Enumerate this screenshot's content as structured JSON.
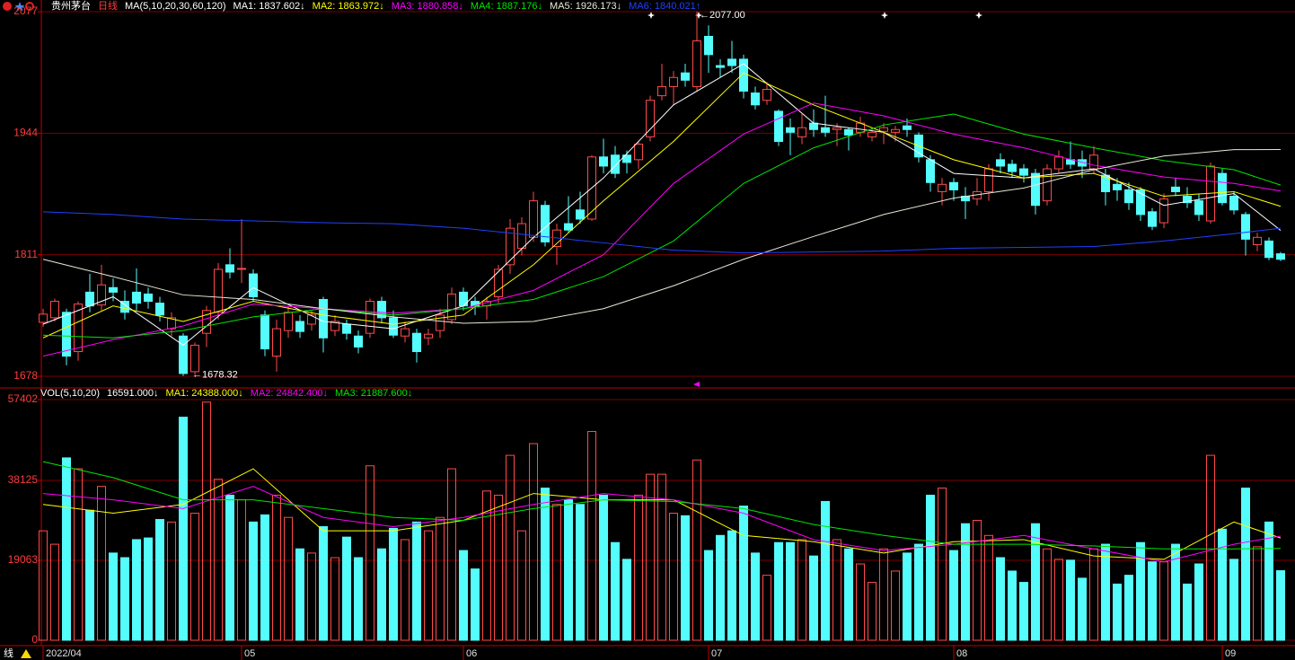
{
  "chart_data": [
    {
      "type": "candlestick",
      "title": "贵州茅台",
      "subtitle": "日线",
      "indicator": "MA(5,10,20,30,60,120)",
      "high_label": "←2077.00",
      "low_label": "←1678.32",
      "ylim": [
        1678,
        2077
      ],
      "yticks": [
        1678,
        1811,
        1944,
        2077
      ],
      "grid": true,
      "up_color": "#ff4a4a",
      "down_color": "#54fcfc",
      "open": [
        1737,
        1742,
        1748,
        1705,
        1770,
        1756,
        1775,
        1760,
        1770,
        1768,
        1758,
        1730,
        1722,
        1683,
        1725,
        1748,
        1800,
        1795,
        1790,
        1745,
        1700,
        1728,
        1738,
        1735,
        1762,
        1728,
        1735,
        1722,
        1725,
        1760,
        1742,
        1722,
        1725,
        1720,
        1728,
        1740,
        1770,
        1760,
        1755,
        1765,
        1800,
        1818,
        1830,
        1865,
        1820,
        1845,
        1860,
        1850,
        1918,
        1920,
        1920,
        1915,
        1940,
        1985,
        1995,
        2010,
        1995,
        2050,
        2018,
        2025,
        2025,
        1988,
        1980,
        1968,
        1950,
        1940,
        1955,
        1950,
        1948,
        1948,
        1945,
        1940,
        1946,
        1945,
        1952,
        1942,
        1915,
        1880,
        1890,
        1875,
        1872,
        1880,
        1915,
        1910,
        1905,
        1900,
        1870,
        1905,
        1915,
        1915,
        1905,
        1898,
        1888,
        1882,
        1882,
        1858,
        1846,
        1885,
        1875,
        1870,
        1848,
        1900,
        1875,
        1855,
        1822,
        1826,
        1812
      ],
      "high": [
        1752,
        1763,
        1752,
        1760,
        1790,
        1800,
        1785,
        1772,
        1796,
        1775,
        1765,
        1748,
        1725,
        1715,
        1755,
        1802,
        1818,
        1850,
        1795,
        1750,
        1740,
        1755,
        1745,
        1750,
        1765,
        1745,
        1740,
        1728,
        1763,
        1765,
        1750,
        1738,
        1730,
        1730,
        1752,
        1775,
        1775,
        1765,
        1765,
        1800,
        1850,
        1852,
        1880,
        1870,
        1845,
        1875,
        1880,
        1920,
        1938,
        1930,
        1925,
        1935,
        1985,
        2020,
        2012,
        2020,
        2077,
        2062,
        2025,
        2045,
        2030,
        1995,
        2000,
        1970,
        1960,
        1965,
        1970,
        1985,
        1955,
        1950,
        1962,
        1950,
        1955,
        1952,
        1960,
        1945,
        1920,
        1895,
        1895,
        1885,
        1895,
        1910,
        1922,
        1915,
        1910,
        1905,
        1910,
        1925,
        1935,
        1925,
        1930,
        1905,
        1895,
        1890,
        1885,
        1862,
        1878,
        1895,
        1885,
        1878,
        1912,
        1905,
        1880,
        1858,
        1835,
        1830,
        1814
      ],
      "low": [
        1732,
        1738,
        1690,
        1695,
        1748,
        1750,
        1760,
        1740,
        1750,
        1752,
        1738,
        1722,
        1678.32,
        1680,
        1710,
        1740,
        1785,
        1780,
        1760,
        1700,
        1683,
        1720,
        1720,
        1728,
        1704,
        1722,
        1718,
        1703,
        1720,
        1736,
        1720,
        1715,
        1693,
        1712,
        1720,
        1735,
        1750,
        1745,
        1740,
        1758,
        1790,
        1810,
        1825,
        1820,
        1800,
        1835,
        1845,
        1848,
        1900,
        1895,
        1900,
        1905,
        1935,
        1980,
        1975,
        1995,
        1990,
        2010,
        2005,
        2010,
        1982,
        1970,
        1975,
        1930,
        1920,
        1932,
        1940,
        1940,
        1930,
        1925,
        1940,
        1935,
        1932,
        1935,
        1940,
        1912,
        1880,
        1865,
        1870,
        1850,
        1865,
        1870,
        1900,
        1895,
        1890,
        1855,
        1865,
        1900,
        1905,
        1895,
        1900,
        1865,
        1870,
        1860,
        1848,
        1838,
        1840,
        1875,
        1862,
        1848,
        1845,
        1865,
        1855,
        1810,
        1815,
        1805,
        1804
      ],
      "close": [
        1746,
        1760,
        1700,
        1757,
        1755,
        1778,
        1770,
        1748,
        1758,
        1760,
        1745,
        1742,
        1681,
        1712,
        1750,
        1795,
        1792,
        1796,
        1765,
        1708,
        1730,
        1748,
        1727,
        1745,
        1720,
        1738,
        1725,
        1710,
        1760,
        1742,
        1723,
        1730,
        1705,
        1724,
        1745,
        1768,
        1755,
        1755,
        1760,
        1795,
        1840,
        1845,
        1870,
        1825,
        1838,
        1838,
        1850,
        1918,
        1908,
        1900,
        1912,
        1932,
        1980,
        1995,
        2005,
        2002,
        2045,
        2030,
        2016,
        2018,
        1990,
        1975,
        1992,
        1935,
        1945,
        1950,
        1948,
        1945,
        1950,
        1942,
        1955,
        1945,
        1950,
        1948,
        1948,
        1918,
        1890,
        1888,
        1882,
        1870,
        1880,
        1905,
        1908,
        1902,
        1898,
        1865,
        1905,
        1918,
        1910,
        1908,
        1920,
        1880,
        1882,
        1868,
        1855,
        1842,
        1872,
        1880,
        1868,
        1855,
        1908,
        1868,
        1860,
        1828,
        1830,
        1808,
        1806
      ],
      "ma_x": [
        0,
        6,
        12,
        18,
        24,
        30,
        36,
        42,
        48,
        54,
        60,
        66,
        72,
        78,
        84,
        90,
        96,
        102,
        106
      ],
      "series": [
        {
          "name": "MA1: 1837.602↓",
          "color": "#ffffff",
          "values": [
            1735,
            1765,
            1712,
            1775,
            1738,
            1730,
            1755,
            1830,
            1895,
            1975,
            2020,
            1955,
            1945,
            1900,
            1895,
            1905,
            1865,
            1878,
            1837.602
          ]
        },
        {
          "name": "MA2: 1863.972↓",
          "color": "#ffff00",
          "values": [
            1720,
            1755,
            1738,
            1760,
            1745,
            1735,
            1745,
            1800,
            1870,
            1935,
            2010,
            1975,
            1945,
            1915,
            1895,
            1900,
            1875,
            1880,
            1863.972
          ]
        },
        {
          "name": "MA3: 1880.858↓",
          "color": "#ff00ff",
          "values": [
            1700,
            1718,
            1733,
            1757,
            1752,
            1747,
            1752,
            1772,
            1811,
            1889,
            1943,
            1977,
            1963,
            1943,
            1928,
            1909,
            1896,
            1889,
            1880.858
          ]
        },
        {
          "name": "MA4: 1887.176↓",
          "color": "#00e600",
          "values": [
            1723,
            1720,
            1728,
            1743,
            1752,
            1745,
            1752,
            1762,
            1787,
            1826,
            1889,
            1928,
            1953,
            1965,
            1943,
            1928,
            1914,
            1904,
            1887.176
          ]
        },
        {
          "name": "MA5: 1926.173↓",
          "color": "#e8e8d8",
          "values": [
            1806,
            1787,
            1767,
            1762,
            1752,
            1743,
            1736,
            1738,
            1752,
            1777,
            1806,
            1831,
            1855,
            1873,
            1884,
            1904,
            1919,
            1926,
            1926.173
          ]
        },
        {
          "name": "MA6: 1840.021↑",
          "color": "#2040ff",
          "values": [
            1858,
            1855,
            1850,
            1848,
            1846,
            1845,
            1840,
            1832,
            1824,
            1816,
            1813,
            1814,
            1815,
            1818,
            1819,
            1820,
            1826,
            1834,
            1840.021
          ]
        }
      ]
    },
    {
      "type": "volume",
      "title": "VOL(5,10,20)",
      "current_label": "16591.000↓",
      "footer_label": "线",
      "ylim": [
        0,
        57402
      ],
      "yticks": [
        0,
        19063,
        38125,
        57402
      ],
      "grid": true,
      "xticks": [
        {
          "value": 0,
          "label": "2022/04"
        },
        {
          "value": 17,
          "label": "05"
        },
        {
          "value": 36,
          "label": "06"
        },
        {
          "value": 57,
          "label": "07"
        },
        {
          "value": 78,
          "label": "08"
        },
        {
          "value": 101,
          "label": "09"
        }
      ],
      "values": [
        26100,
        22900,
        43500,
        40900,
        31000,
        36700,
        20800,
        19700,
        24000,
        24400,
        28800,
        28200,
        53200,
        30300,
        56800,
        38400,
        34600,
        33500,
        28200,
        29900,
        34600,
        29300,
        21800,
        20800,
        27100,
        19700,
        24600,
        19700,
        41600,
        21800,
        26700,
        24000,
        28200,
        26100,
        29300,
        40900,
        21400,
        17000,
        35600,
        34600,
        44100,
        26100,
        46900,
        36300,
        32400,
        33500,
        32400,
        49800,
        34600,
        23300,
        19300,
        34600,
        39600,
        39600,
        30300,
        29700,
        43000,
        21400,
        25000,
        26100,
        32000,
        20800,
        15500,
        23300,
        23300,
        24000,
        20100,
        33100,
        24000,
        21800,
        18200,
        13800,
        21800,
        16500,
        20800,
        22900,
        34600,
        36300,
        21400,
        27800,
        28600,
        25000,
        19700,
        16500,
        13800,
        27800,
        21800,
        19300,
        19100,
        14800,
        21800,
        22900,
        13400,
        15500,
        23300,
        18700,
        18700,
        22900,
        13400,
        18200,
        44100,
        26500,
        19300,
        36300,
        22300,
        28200,
        16591
      ],
      "ma_x": [
        0,
        6,
        12,
        18,
        24,
        30,
        36,
        42,
        48,
        54,
        60,
        66,
        72,
        78,
        84,
        90,
        96,
        102,
        106
      ],
      "series": [
        {
          "name": "MA1: 24388.000↓",
          "color": "#ffff00",
          "values": [
            32400,
            30300,
            32400,
            40900,
            26100,
            26100,
            28600,
            35000,
            33500,
            33500,
            25000,
            23500,
            20800,
            23500,
            24000,
            20100,
            19300,
            28200,
            24388
          ]
        },
        {
          "name": "MA2: 24842.400↓",
          "color": "#ff00ff",
          "values": [
            35000,
            33500,
            31400,
            36700,
            29300,
            27100,
            29300,
            32400,
            35000,
            33500,
            30300,
            24000,
            21400,
            22900,
            25000,
            21800,
            18700,
            22900,
            24842.4
          ]
        },
        {
          "name": "MA3: 21887.600↓",
          "color": "#00e600",
          "values": [
            42600,
            38800,
            33500,
            33500,
            31400,
            29300,
            28600,
            31400,
            33500,
            33100,
            31400,
            27600,
            25000,
            22900,
            22900,
            22500,
            21800,
            21800,
            21887.6
          ]
        }
      ]
    }
  ]
}
